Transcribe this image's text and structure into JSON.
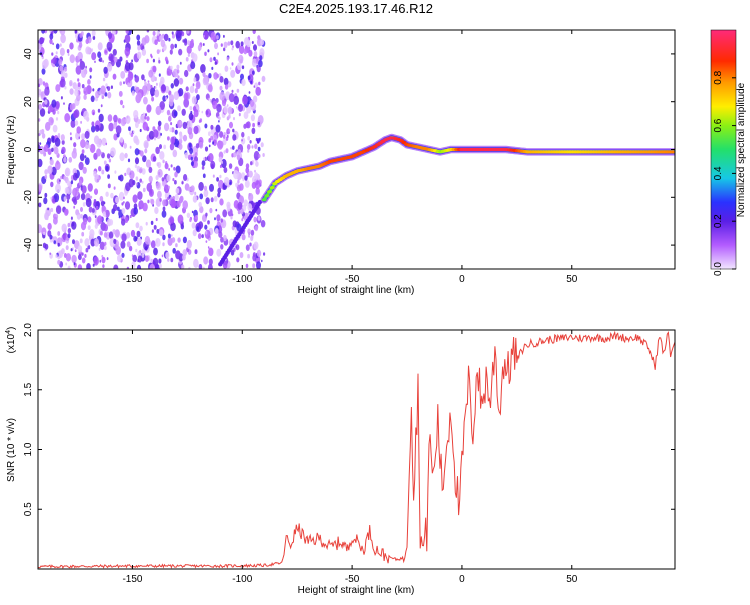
{
  "title": "C2E4.2025.193.17.46.R12",
  "top_chart": {
    "xlabel": "Height of straight line (km)",
    "ylabel": "Frequency (Hz)",
    "xticks": [
      "-150",
      "-100",
      "-50",
      "0",
      "50"
    ],
    "yticks": [
      "-40",
      "-20",
      "0",
      "20",
      "40"
    ],
    "colorbar_label": "Normalized spectral amplitude",
    "colorbar_ticks": [
      "0.0",
      "0.2",
      "0.4",
      "0.6",
      "0.8"
    ]
  },
  "bottom_chart": {
    "xlabel": "Height of straight line (km)",
    "ylabel": "SNR (10 * v/v)",
    "scale_label": "(x10",
    "scale_exp": "4",
    "scale_close": ")",
    "xticks": [
      "-150",
      "-100",
      "-50",
      "0",
      "50"
    ],
    "yticks": [
      "0.5",
      "1.0",
      "1.5",
      "2.0"
    ],
    "line_color": "#e8413a"
  },
  "chart_data": [
    {
      "type": "heatmap",
      "xlim": [
        -193,
        97
      ],
      "ylim": [
        -50,
        50
      ],
      "color_range": [
        0,
        1
      ],
      "noise_region_x": [
        -193,
        -90
      ],
      "ridge": {
        "x": [
          -90,
          -85,
          -80,
          -75,
          -70,
          -65,
          -60,
          -55,
          -50,
          -45,
          -40,
          -35,
          -32,
          -28,
          -25,
          -20,
          -15,
          -10,
          -5,
          0,
          10,
          20,
          30,
          50,
          70,
          97
        ],
        "y": [
          -21,
          -14,
          -11,
          -9,
          -8,
          -7,
          -5,
          -4,
          -3,
          -1,
          1,
          4,
          5,
          4,
          2,
          1,
          0,
          -1,
          0,
          0,
          0,
          0,
          -1,
          -1,
          -1,
          -1
        ],
        "amplitude": [
          0.55,
          0.65,
          0.75,
          0.75,
          0.8,
          0.8,
          0.85,
          0.85,
          0.85,
          0.85,
          0.9,
          0.95,
          0.95,
          0.9,
          0.85,
          0.8,
          0.8,
          0.6,
          0.7,
          0.95,
          0.95,
          0.95,
          0.75,
          0.7,
          0.75,
          0.8
        ]
      }
    },
    {
      "type": "line",
      "xlim": [
        -193,
        97
      ],
      "ylim": [
        0,
        20000
      ],
      "x": [
        -193,
        -150,
        -110,
        -90,
        -82,
        -80,
        -78,
        -75,
        -70,
        -65,
        -60,
        -55,
        -52,
        -50,
        -47,
        -45,
        -42,
        -40,
        -35,
        -30,
        -27,
        -25,
        -24,
        -23,
        -22,
        -21,
        -20,
        -19,
        -18,
        -16,
        -15,
        -13,
        -11,
        -9,
        -7,
        -5,
        -3,
        -1,
        0,
        1,
        3,
        5,
        7,
        9,
        11,
        13,
        15,
        17,
        19,
        21,
        23,
        25,
        28,
        30,
        35,
        40,
        45,
        50,
        55,
        60,
        65,
        70,
        75,
        80,
        85,
        88,
        90,
        92,
        94,
        95,
        97
      ],
      "y": [
        200,
        250,
        250,
        300,
        500,
        2500,
        2000,
        3500,
        2200,
        2600,
        1800,
        2300,
        1600,
        2800,
        2200,
        1500,
        3200,
        1800,
        1100,
        800,
        900,
        3000,
        9000,
        14500,
        6000,
        11000,
        15000,
        3500,
        1500,
        3000,
        11000,
        7500,
        12500,
        6500,
        10500,
        13500,
        8000,
        4500,
        9000,
        11000,
        15500,
        11500,
        17000,
        13500,
        16000,
        14000,
        18500,
        13000,
        17500,
        16500,
        18000,
        17500,
        18500,
        18800,
        19000,
        19200,
        19300,
        19400,
        19300,
        19400,
        19300,
        19500,
        19300,
        19400,
        18500,
        17000,
        19500,
        18000,
        19800,
        18000,
        19000
      ]
    }
  ]
}
